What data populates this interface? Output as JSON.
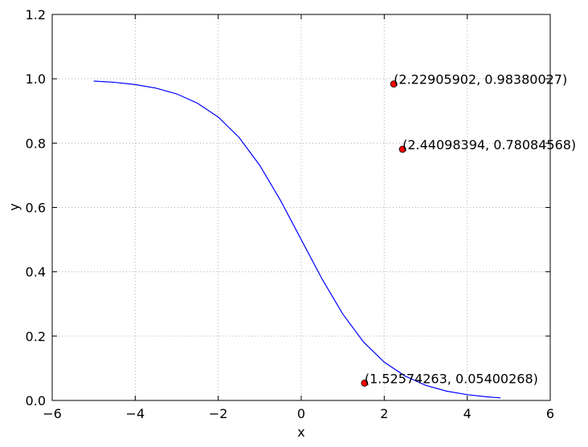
{
  "chart_data": {
    "type": "line",
    "xlabel": "x",
    "ylabel": "y",
    "xlim": [
      -6,
      6
    ],
    "ylim": [
      0,
      1.2
    ],
    "xticks": [
      {
        "value": -6,
        "label": "−6"
      },
      {
        "value": -4,
        "label": "−4"
      },
      {
        "value": -2,
        "label": "−2"
      },
      0,
      2,
      4,
      6
    ],
    "yticks": [
      {
        "value": 0,
        "label": "0.0"
      },
      0.2,
      0.4,
      0.6,
      0.8,
      {
        "value": 1,
        "label": "1.0"
      },
      1.2
    ],
    "grid": true,
    "series": [
      {
        "type": "line",
        "color": "#0000ff",
        "x": [
          -5,
          -4.5,
          -4,
          -3.5,
          -3,
          -2.5,
          -2,
          -1.5,
          -1,
          -0.5,
          0,
          0.5,
          1,
          1.5,
          2,
          2.5,
          3,
          3.5,
          4,
          4.5,
          4.8
        ],
        "values": [
          0.993,
          0.989,
          0.982,
          0.971,
          0.953,
          0.924,
          0.881,
          0.818,
          0.731,
          0.622,
          0.5,
          0.378,
          0.269,
          0.182,
          0.119,
          0.076,
          0.047,
          0.029,
          0.018,
          0.011,
          0.008
        ]
      },
      {
        "type": "scatter",
        "color": "#ff0000",
        "x": [
          2.22905902,
          2.44098394,
          1.52574263
        ],
        "values": [
          0.98380027,
          0.78084568,
          0.05400268
        ],
        "labels": [
          "(2.22905902, 0.98380027)",
          "(2.44098394, 0.78084568)",
          "(1.52574263, 0.05400268)"
        ]
      }
    ]
  }
}
